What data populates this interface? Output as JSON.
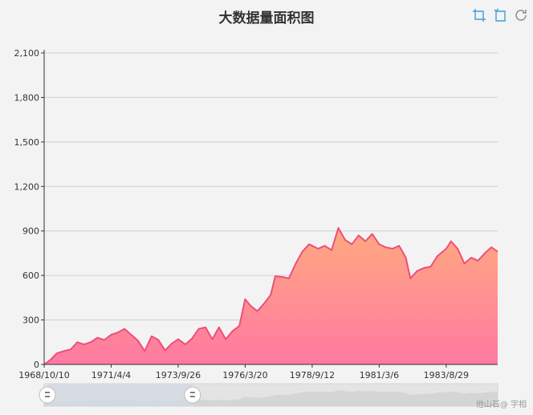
{
  "title": "大数据量面积图",
  "watermark": "他山石@ 字相",
  "toolbox": [
    {
      "name": "zoom-icon"
    },
    {
      "name": "zoom-reset-icon"
    },
    {
      "name": "restore-icon"
    }
  ],
  "colors": {
    "line": "#ee4e7a",
    "area_top": "#ffa97f",
    "area_bottom": "#ff79a2",
    "grid": "#d0d0d0",
    "axis": "#333333",
    "zoom_bg": "#e4e4e4",
    "zoom_selected": "#d1d8e4",
    "toolbox": "#3f9dd8"
  },
  "chart_data": {
    "type": "area",
    "title": "大数据量面积图",
    "ylim": [
      0,
      2100
    ],
    "yticks": [
      "0",
      "300",
      "600",
      "900",
      "1,200",
      "1,500",
      "1,800",
      "2,100"
    ],
    "xticks": [
      "1968/10/10",
      "1971/4/4",
      "1973/9/26",
      "1976/3/20",
      "1978/9/12",
      "1981/3/6",
      "1983/8/29"
    ],
    "xlim": [
      "1968/10/10",
      "1985/7/25"
    ],
    "grid": true,
    "dataZoom": {
      "start_fraction": 0,
      "end_fraction": 0.32
    },
    "series": [
      {
        "points": [
          [
            "1968/10/10",
            0
          ],
          [
            "1969/1/1",
            30
          ],
          [
            "1969/4/1",
            75
          ],
          [
            "1969/7/1",
            90
          ],
          [
            "1969/10/1",
            100
          ],
          [
            "1970/1/1",
            150
          ],
          [
            "1970/4/1",
            135
          ],
          [
            "1970/7/1",
            150
          ],
          [
            "1970/10/1",
            180
          ],
          [
            "1971/1/1",
            165
          ],
          [
            "1971/4/4",
            200
          ],
          [
            "1971/7/1",
            215
          ],
          [
            "1971/10/1",
            240
          ],
          [
            "1972/1/1",
            200
          ],
          [
            "1972/4/1",
            160
          ],
          [
            "1972/7/1",
            90
          ],
          [
            "1972/10/1",
            190
          ],
          [
            "1973/1/1",
            165
          ],
          [
            "1973/4/1",
            95
          ],
          [
            "1973/7/1",
            140
          ],
          [
            "1973/9/26",
            170
          ],
          [
            "1974/1/1",
            135
          ],
          [
            "1974/4/1",
            175
          ],
          [
            "1974/7/1",
            240
          ],
          [
            "1974/10/1",
            250
          ],
          [
            "1975/1/1",
            170
          ],
          [
            "1975/4/1",
            250
          ],
          [
            "1975/7/1",
            170
          ],
          [
            "1975/10/1",
            225
          ],
          [
            "1976/1/1",
            260
          ],
          [
            "1976/3/20",
            440
          ],
          [
            "1976/6/1",
            395
          ],
          [
            "1976/9/1",
            360
          ],
          [
            "1976/12/1",
            410
          ],
          [
            "1977/3/1",
            470
          ],
          [
            "1977/5/1",
            595
          ],
          [
            "1977/8/1",
            590
          ],
          [
            "1977/11/1",
            580
          ],
          [
            "1978/2/1",
            680
          ],
          [
            "1978/5/1",
            760
          ],
          [
            "1978/8/1",
            810
          ],
          [
            "1978/9/12",
            800
          ],
          [
            "1978/12/1",
            780
          ],
          [
            "1979/3/1",
            800
          ],
          [
            "1979/6/1",
            770
          ],
          [
            "1979/9/1",
            920
          ],
          [
            "1979/12/1",
            840
          ],
          [
            "1980/3/1",
            810
          ],
          [
            "1980/6/1",
            870
          ],
          [
            "1980/9/1",
            830
          ],
          [
            "1980/12/1",
            880
          ],
          [
            "1981/3/6",
            810
          ],
          [
            "1981/6/1",
            790
          ],
          [
            "1981/9/1",
            780
          ],
          [
            "1981/12/1",
            800
          ],
          [
            "1982/3/1",
            720
          ],
          [
            "1982/5/1",
            580
          ],
          [
            "1982/8/1",
            630
          ],
          [
            "1982/11/1",
            650
          ],
          [
            "1983/2/1",
            660
          ],
          [
            "1983/5/1",
            730
          ],
          [
            "1983/8/29",
            780
          ],
          [
            "1983/11/1",
            830
          ],
          [
            "1984/2/1",
            780
          ],
          [
            "1984/5/1",
            680
          ],
          [
            "1984/8/1",
            720
          ],
          [
            "1984/11/1",
            700
          ],
          [
            "1985/2/1",
            750
          ],
          [
            "1985/5/1",
            790
          ],
          [
            "1985/7/25",
            760
          ]
        ]
      }
    ]
  }
}
